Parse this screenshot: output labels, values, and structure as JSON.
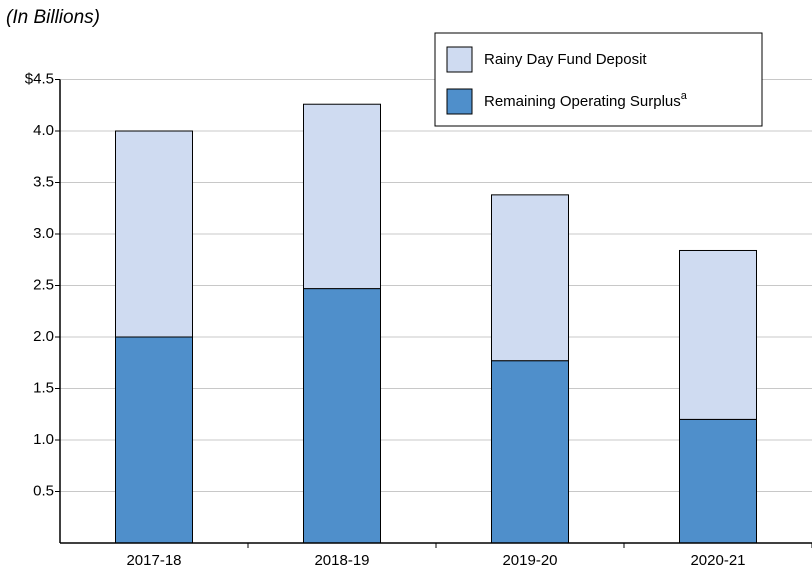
{
  "chart_data": {
    "type": "stacked_bar",
    "subtitle": "(In Billions)",
    "categories": [
      "2017-18",
      "2018-19",
      "2019-20",
      "2020-21"
    ],
    "series": [
      {
        "name": "Rainy Day Fund Deposit",
        "color": "#cfdbf1",
        "values": [
          2.0,
          1.79,
          1.61,
          1.64
        ]
      },
      {
        "name": "Remaining Operating Surplus",
        "superscript": "a",
        "color": "#4f8fcb",
        "values": [
          2.0,
          2.47,
          1.77,
          1.2
        ]
      }
    ],
    "ylim": [
      0,
      4.5
    ],
    "yticks": [
      0.5,
      {
        "value": 1,
        "label": "1.0"
      },
      1.5,
      {
        "value": 2,
        "label": "2.0"
      },
      2.5,
      {
        "value": 3,
        "label": "3.0"
      },
      3.5,
      {
        "value": 4,
        "label": "4.0"
      },
      {
        "value": 4.5,
        "label": "$4.5"
      }
    ],
    "grid": true,
    "legend": "top-right"
  }
}
